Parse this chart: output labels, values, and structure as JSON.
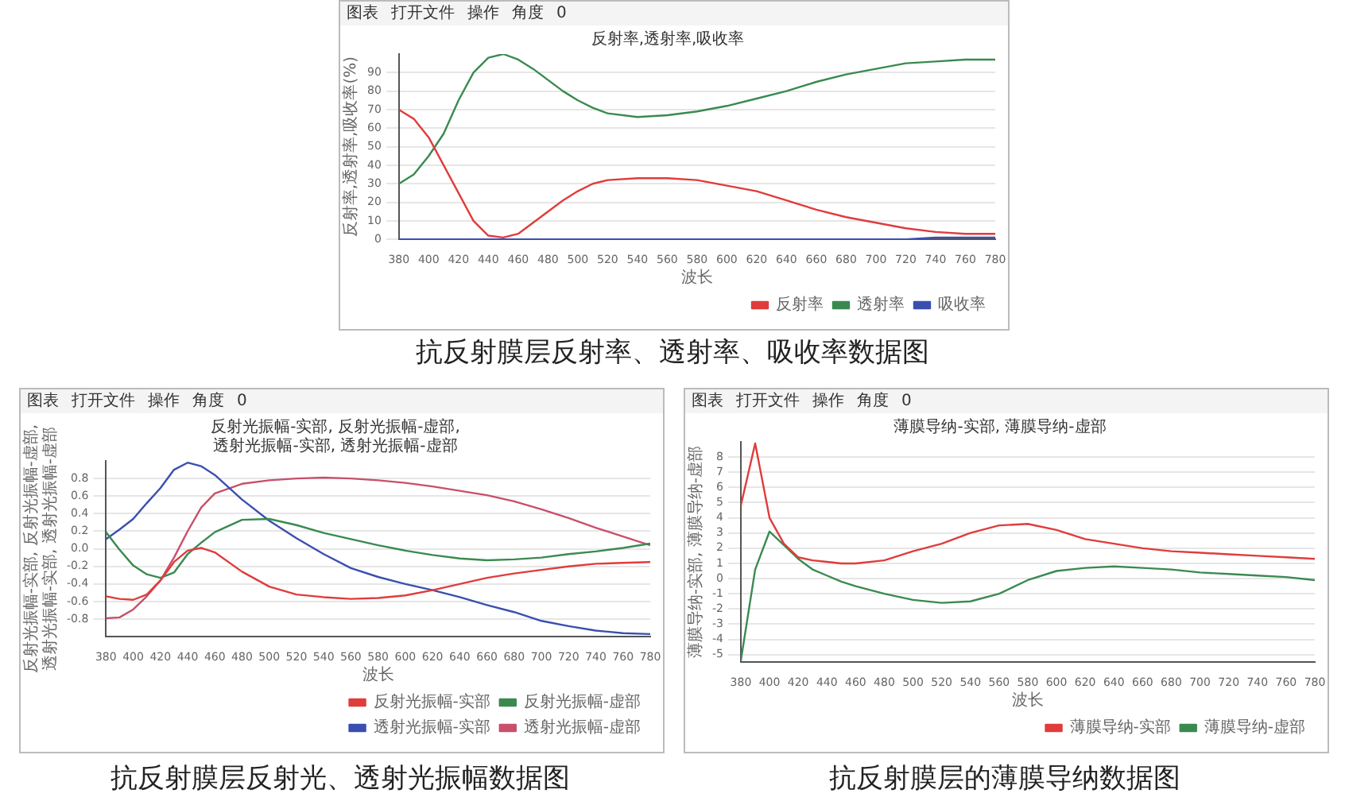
{
  "chart_data": [
    {
      "type": "line",
      "title": "反射率,透射率,吸收率",
      "xlabel": "波长",
      "ylabel": "反射率,透射率,吸收率(%)",
      "annotations": [
        "图表",
        "打开文件",
        "操作",
        "角度",
        "0",
        "抗反射膜层反射率、透射率、吸收率数据图"
      ],
      "x": [
        380,
        390,
        400,
        410,
        420,
        430,
        440,
        450,
        460,
        470,
        480,
        490,
        500,
        510,
        520,
        540,
        560,
        580,
        600,
        620,
        640,
        660,
        680,
        700,
        720,
        740,
        760,
        780
      ],
      "series": [
        {
          "name": "反射率",
          "color": "#e03c3c",
          "values": [
            70,
            65,
            55,
            40,
            25,
            10,
            2,
            1,
            3,
            9,
            15,
            21,
            26,
            30,
            32,
            33,
            33,
            32,
            29,
            26,
            21,
            16,
            12,
            9,
            6,
            4,
            3,
            3
          ]
        },
        {
          "name": "透射率",
          "color": "#3a8a50",
          "values": [
            30,
            35,
            45,
            57,
            75,
            90,
            98,
            100,
            97,
            92,
            86,
            80,
            75,
            71,
            68,
            66,
            67,
            69,
            72,
            76,
            80,
            85,
            89,
            92,
            95,
            96,
            97,
            97
          ]
        },
        {
          "name": "吸收率",
          "color": "#3a4fb0",
          "values": [
            0,
            0,
            0,
            0,
            0,
            0,
            0,
            0,
            0,
            0,
            0,
            0,
            0,
            0,
            0,
            0,
            0,
            0,
            0,
            0,
            0,
            0,
            0,
            0,
            0,
            1,
            1,
            1
          ]
        }
      ],
      "xlim": [
        380,
        780
      ],
      "xticks": [
        380,
        400,
        420,
        440,
        460,
        480,
        500,
        520,
        540,
        560,
        580,
        600,
        620,
        640,
        660,
        680,
        700,
        720,
        740,
        760,
        780
      ],
      "ylim": [
        0,
        100
      ],
      "yticks": [
        0,
        10,
        20,
        30,
        40,
        50,
        60,
        70,
        80,
        90
      ],
      "grid": "y",
      "legend": "bottom right"
    },
    {
      "type": "line",
      "title": "反射光振幅-实部, 反射光振幅-虚部, 透射光振幅-实部, 透射光振幅-虚部",
      "xlabel": "波长",
      "ylabel": "反射光振幅-实部, 反射光振幅-虚部, 透射光振幅-实部, 透射光振幅-虚部",
      "annotations": [
        "图表",
        "打开文件",
        "操作",
        "角度",
        "0",
        "抗反射膜层反射光、透射光振幅数据图"
      ],
      "x": [
        380,
        390,
        400,
        410,
        420,
        430,
        440,
        450,
        460,
        480,
        500,
        520,
        540,
        560,
        580,
        600,
        620,
        640,
        660,
        680,
        700,
        720,
        740,
        760,
        780
      ],
      "series": [
        {
          "name": "反射光振幅-实部",
          "color": "#e03c3c",
          "values": [
            -0.54,
            -0.57,
            -0.58,
            -0.52,
            -0.36,
            -0.15,
            -0.02,
            0.01,
            -0.04,
            -0.26,
            -0.43,
            -0.52,
            -0.55,
            -0.57,
            -0.56,
            -0.53,
            -0.47,
            -0.4,
            -0.33,
            -0.28,
            -0.24,
            -0.2,
            -0.17,
            -0.16,
            -0.15
          ]
        },
        {
          "name": "反射光振幅-虚部",
          "color": "#3a8a50",
          "values": [
            0.19,
            -0.01,
            -0.19,
            -0.29,
            -0.33,
            -0.27,
            -0.06,
            0.07,
            0.19,
            0.33,
            0.34,
            0.27,
            0.18,
            0.11,
            0.04,
            -0.02,
            -0.07,
            -0.11,
            -0.13,
            -0.12,
            -0.1,
            -0.06,
            -0.03,
            0.01,
            0.06
          ]
        },
        {
          "name": "透射光振幅-实部",
          "color": "#3a4fb0",
          "values": [
            0.11,
            0.22,
            0.34,
            0.52,
            0.69,
            0.9,
            0.98,
            0.94,
            0.84,
            0.56,
            0.32,
            0.12,
            -0.06,
            -0.22,
            -0.32,
            -0.4,
            -0.47,
            -0.55,
            -0.64,
            -0.72,
            -0.82,
            -0.88,
            -0.93,
            -0.96,
            -0.97
          ]
        },
        {
          "name": "透射光振幅-虚部",
          "color": "#c8506a",
          "values": [
            -0.79,
            -0.78,
            -0.69,
            -0.54,
            -0.36,
            -0.1,
            0.2,
            0.47,
            0.63,
            0.74,
            0.78,
            0.8,
            0.81,
            0.8,
            0.78,
            0.75,
            0.71,
            0.66,
            0.61,
            0.54,
            0.45,
            0.35,
            0.24,
            0.14,
            0.04
          ]
        }
      ],
      "xlim": [
        380,
        780
      ],
      "xticks": [
        380,
        400,
        420,
        440,
        460,
        480,
        500,
        520,
        540,
        560,
        580,
        600,
        620,
        640,
        660,
        680,
        700,
        720,
        740,
        760,
        780
      ],
      "ylim": [
        -1,
        1
      ],
      "yticks": [
        -0.8,
        -0.6,
        -0.4,
        -0.2,
        {
          "value": 0,
          "label": "0.0"
        },
        0.2,
        0.4,
        0.6,
        0.8
      ],
      "grid": "y",
      "legend": "bottom right"
    },
    {
      "type": "line",
      "title": "薄膜导纳-实部, 薄膜导纳-虚部",
      "xlabel": "波长",
      "ylabel": "薄膜导纳-实部, 薄膜导纳-虚部",
      "annotations": [
        "图表",
        "打开文件",
        "操作",
        "角度",
        "0",
        "抗反射膜层的薄膜导纳数据图"
      ],
      "x": [
        380,
        390,
        400,
        410,
        420,
        430,
        440,
        450,
        460,
        480,
        500,
        520,
        540,
        560,
        580,
        600,
        620,
        640,
        660,
        680,
        700,
        720,
        740,
        760,
        780
      ],
      "series": [
        {
          "name": "薄膜导纳-实部",
          "color": "#e03c3c",
          "values": [
            4.8,
            8.9,
            4.0,
            2.3,
            1.4,
            1.2,
            1.1,
            1.0,
            1.0,
            1.2,
            1.8,
            2.3,
            3.0,
            3.5,
            3.6,
            3.2,
            2.6,
            2.3,
            2.0,
            1.8,
            1.7,
            1.6,
            1.5,
            1.4,
            1.3
          ]
        },
        {
          "name": "薄膜导纳-虚部",
          "color": "#3a8a50",
          "values": [
            -5.4,
            0.6,
            3.1,
            2.2,
            1.3,
            0.6,
            0.2,
            -0.2,
            -0.5,
            -1.0,
            -1.4,
            -1.6,
            -1.5,
            -1.0,
            -0.1,
            0.5,
            0.7,
            0.8,
            0.7,
            0.6,
            0.4,
            0.3,
            0.2,
            0.1,
            -0.1
          ]
        }
      ],
      "xlim": [
        380,
        780
      ],
      "xticks": [
        380,
        400,
        420,
        440,
        460,
        480,
        500,
        520,
        540,
        560,
        580,
        600,
        620,
        640,
        660,
        680,
        700,
        720,
        740,
        760,
        780
      ],
      "ylim": [
        -5.5,
        9
      ],
      "yticks": [
        -5,
        -4,
        -3,
        -2,
        -1,
        0,
        1,
        2,
        3,
        4,
        5,
        6,
        7,
        8
      ],
      "grid": "y",
      "legend": "bottom right"
    }
  ]
}
